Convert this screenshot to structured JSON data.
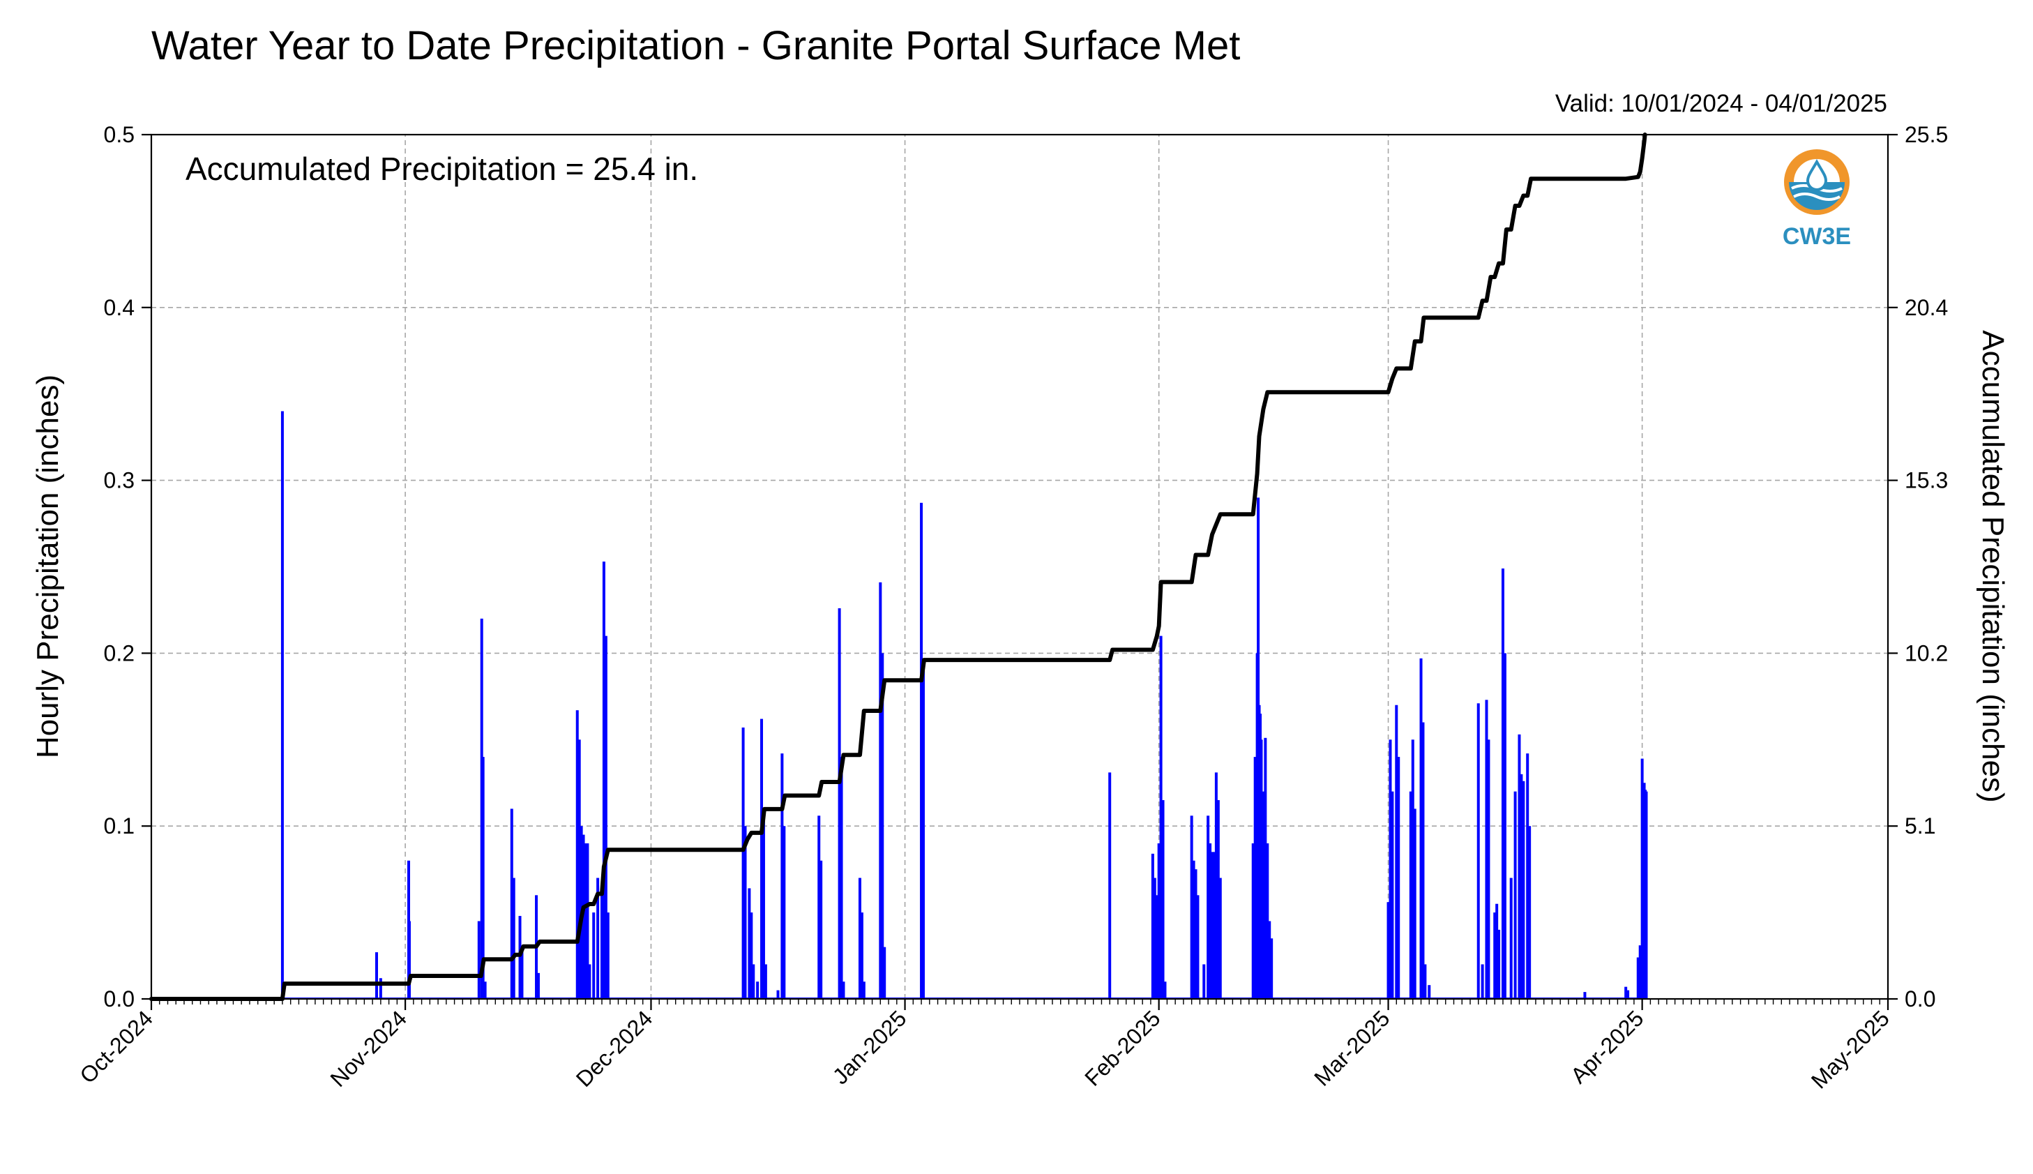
{
  "title": "Water Year to Date Precipitation - Granite Portal Surface Met",
  "valid_text": "Valid: 10/01/2024 - 04/01/2025",
  "annotation": "Accumulated Precipitation = 25.4 in.",
  "logo_text": "CW3E",
  "colors": {
    "hourly": "#0000ff",
    "accumulated": "#000000",
    "grid": "#a6a6a6",
    "logo_orange": "#f0962b",
    "logo_blue": "#2b8fbf"
  },
  "chart_data": {
    "type": "bar",
    "title": "Water Year to Date Precipitation - Granite Portal Surface Met",
    "xlim": [
      "2024-10-01",
      "2025-05-01"
    ],
    "x_tick_labels": [
      "Oct-2024",
      "Nov-2024",
      "Dec-2024",
      "Jan-2025",
      "Feb-2025",
      "Mar-2025",
      "Apr-2025",
      "May-2025"
    ],
    "x_tick_dates": [
      "2024-10-01",
      "2024-11-01",
      "2024-12-01",
      "2025-01-01",
      "2025-02-01",
      "2025-03-01",
      "2025-04-01",
      "2025-05-01"
    ],
    "left_axis": {
      "label": "Hourly Precipitation (inches)",
      "ylim": [
        0,
        0.5
      ],
      "ticks": [
        "0.0",
        "0.1",
        "0.2",
        "0.3",
        "0.4",
        "0.5"
      ]
    },
    "right_axis": {
      "label": "Accumulated Precipitation (inches)",
      "ylim": [
        0,
        25.5
      ],
      "ticks": [
        "0.0",
        "5.1",
        "10.2",
        "15.3",
        "20.4",
        "25.5"
      ]
    },
    "grid": true,
    "series": [
      {
        "type": "bar",
        "axis": "left",
        "values": [
          [
            "2024-10-17T00:00",
            0.34
          ],
          [
            "2024-10-28T12:00",
            0.027
          ],
          [
            "2024-10-29T00:00",
            0.012
          ],
          [
            "2024-11-01T10:00",
            0.08
          ],
          [
            "2024-11-01T12:00",
            0.045
          ],
          [
            "2024-11-10T00:00",
            0.045
          ],
          [
            "2024-11-10T08:00",
            0.22
          ],
          [
            "2024-11-10T12:00",
            0.14
          ],
          [
            "2024-11-10T18:00",
            0.01
          ],
          [
            "2024-11-14T00:00",
            0.11
          ],
          [
            "2024-11-14T06:00",
            0.07
          ],
          [
            "2024-11-15T00:00",
            0.048
          ],
          [
            "2024-11-15T06:00",
            0.03
          ],
          [
            "2024-11-17T00:00",
            0.06
          ],
          [
            "2024-11-17T06:00",
            0.015
          ],
          [
            "2024-11-22T00:00",
            0.167
          ],
          [
            "2024-11-22T06:00",
            0.15
          ],
          [
            "2024-11-22T12:00",
            0.1
          ],
          [
            "2024-11-22T18:00",
            0.095
          ],
          [
            "2024-11-23T00:00",
            0.09
          ],
          [
            "2024-11-23T06:00",
            0.09
          ],
          [
            "2024-11-23T12:00",
            0.02
          ],
          [
            "2024-11-24T00:00",
            0.05
          ],
          [
            "2024-11-24T12:00",
            0.07
          ],
          [
            "2024-11-25T00:00",
            0.06
          ],
          [
            "2024-11-25T06:00",
            0.253
          ],
          [
            "2024-11-25T12:00",
            0.21
          ],
          [
            "2024-11-25T18:00",
            0.05
          ],
          [
            "2024-12-12T06:00",
            0.157
          ],
          [
            "2024-12-12T12:00",
            0.1
          ],
          [
            "2024-12-13T00:00",
            0.064
          ],
          [
            "2024-12-13T06:00",
            0.05
          ],
          [
            "2024-12-13T12:00",
            0.02
          ],
          [
            "2024-12-14T00:00",
            0.01
          ],
          [
            "2024-12-14T12:00",
            0.162
          ],
          [
            "2024-12-14T18:00",
            0.11
          ],
          [
            "2024-12-15T00:00",
            0.02
          ],
          [
            "2024-12-16T12:00",
            0.005
          ],
          [
            "2024-12-17T00:00",
            0.142
          ],
          [
            "2024-12-17T06:00",
            0.1
          ],
          [
            "2024-12-21T12:00",
            0.106
          ],
          [
            "2024-12-21T18:00",
            0.08
          ],
          [
            "2024-12-24T00:00",
            0.226
          ],
          [
            "2024-12-24T06:00",
            0.14
          ],
          [
            "2024-12-24T12:00",
            0.01
          ],
          [
            "2024-12-26T12:00",
            0.07
          ],
          [
            "2024-12-26T18:00",
            0.05
          ],
          [
            "2024-12-27T00:00",
            0.01
          ],
          [
            "2024-12-29T00:00",
            0.241
          ],
          [
            "2024-12-29T06:00",
            0.2
          ],
          [
            "2024-12-29T12:00",
            0.03
          ],
          [
            "2025-01-03T00:00",
            0.287
          ],
          [
            "2025-01-03T06:00",
            0.19
          ],
          [
            "2025-01-26T00:00",
            0.131
          ],
          [
            "2025-01-31T06:00",
            0.084
          ],
          [
            "2025-01-31T12:00",
            0.07
          ],
          [
            "2025-01-31T18:00",
            0.06
          ],
          [
            "2025-02-01T00:00",
            0.09
          ],
          [
            "2025-02-01T06:00",
            0.21
          ],
          [
            "2025-02-01T12:00",
            0.115
          ],
          [
            "2025-02-01T18:00",
            0.01
          ],
          [
            "2025-02-05T00:00",
            0.106
          ],
          [
            "2025-02-05T06:00",
            0.08
          ],
          [
            "2025-02-05T12:00",
            0.075
          ],
          [
            "2025-02-05T18:00",
            0.06
          ],
          [
            "2025-02-06T12:00",
            0.02
          ],
          [
            "2025-02-07T00:00",
            0.106
          ],
          [
            "2025-02-07T06:00",
            0.09
          ],
          [
            "2025-02-07T12:00",
            0.085
          ],
          [
            "2025-02-07T18:00",
            0.085
          ],
          [
            "2025-02-08T00:00",
            0.131
          ],
          [
            "2025-02-08T06:00",
            0.115
          ],
          [
            "2025-02-08T12:00",
            0.07
          ],
          [
            "2025-02-12T12:00",
            0.09
          ],
          [
            "2025-02-12T18:00",
            0.14
          ],
          [
            "2025-02-13T00:00",
            0.2
          ],
          [
            "2025-02-13T03:00",
            0.29
          ],
          [
            "2025-02-13T06:00",
            0.17
          ],
          [
            "2025-02-13T09:00",
            0.165
          ],
          [
            "2025-02-13T12:00",
            0.15
          ],
          [
            "2025-02-13T18:00",
            0.12
          ],
          [
            "2025-02-14T00:00",
            0.151
          ],
          [
            "2025-02-14T06:00",
            0.09
          ],
          [
            "2025-02-14T12:00",
            0.045
          ],
          [
            "2025-02-14T18:00",
            0.035
          ],
          [
            "2025-03-01T00:00",
            0.056
          ],
          [
            "2025-03-01T06:00",
            0.15
          ],
          [
            "2025-03-01T12:00",
            0.12
          ],
          [
            "2025-03-02T00:00",
            0.17
          ],
          [
            "2025-03-02T06:00",
            0.14
          ],
          [
            "2025-03-03T18:00",
            0.12
          ],
          [
            "2025-03-04T00:00",
            0.15
          ],
          [
            "2025-03-04T06:00",
            0.11
          ],
          [
            "2025-03-05T00:00",
            0.197
          ],
          [
            "2025-03-05T06:00",
            0.16
          ],
          [
            "2025-03-05T12:00",
            0.02
          ],
          [
            "2025-03-06T00:00",
            0.008
          ],
          [
            "2025-03-12T00:00",
            0.171
          ],
          [
            "2025-03-12T12:00",
            0.02
          ],
          [
            "2025-03-13T00:00",
            0.173
          ],
          [
            "2025-03-13T06:00",
            0.15
          ],
          [
            "2025-03-14T00:00",
            0.05
          ],
          [
            "2025-03-14T06:00",
            0.055
          ],
          [
            "2025-03-14T12:00",
            0.04
          ],
          [
            "2025-03-15T00:00",
            0.249
          ],
          [
            "2025-03-15T06:00",
            0.2
          ],
          [
            "2025-03-16T00:00",
            0.07
          ],
          [
            "2025-03-16T12:00",
            0.12
          ],
          [
            "2025-03-17T00:00",
            0.153
          ],
          [
            "2025-03-17T06:00",
            0.13
          ],
          [
            "2025-03-17T12:00",
            0.126
          ],
          [
            "2025-03-18T00:00",
            0.142
          ],
          [
            "2025-03-18T06:00",
            0.1
          ],
          [
            "2025-03-25T00:00",
            0.004
          ],
          [
            "2025-03-30T00:00",
            0.007
          ],
          [
            "2025-03-30T06:00",
            0.005
          ],
          [
            "2025-03-31T12:00",
            0.024
          ],
          [
            "2025-03-31T18:00",
            0.031
          ],
          [
            "2025-04-01T00:00",
            0.139
          ],
          [
            "2025-04-01T03:00",
            0.09
          ],
          [
            "2025-04-01T06:00",
            0.125
          ],
          [
            "2025-04-01T09:00",
            0.121
          ],
          [
            "2025-04-01T12:00",
            0.12
          ]
        ]
      },
      {
        "type": "step-line",
        "axis": "right",
        "values": [
          [
            "2024-10-01T00:00",
            0.0
          ],
          [
            "2024-10-17T00:00",
            0.0
          ],
          [
            "2024-10-17T06:00",
            0.45
          ],
          [
            "2024-11-01T10:00",
            0.45
          ],
          [
            "2024-11-01T16:00",
            0.68
          ],
          [
            "2024-11-10T06:00",
            0.68
          ],
          [
            "2024-11-10T14:00",
            1.17
          ],
          [
            "2024-11-14T00:00",
            1.17
          ],
          [
            "2024-11-14T10:00",
            1.3
          ],
          [
            "2024-11-15T00:00",
            1.3
          ],
          [
            "2024-11-15T10:00",
            1.55
          ],
          [
            "2024-11-17T00:00",
            1.55
          ],
          [
            "2024-11-17T10:00",
            1.69
          ],
          [
            "2024-11-22T00:00",
            1.69
          ],
          [
            "2024-11-22T12:00",
            2.4
          ],
          [
            "2024-11-22T18:00",
            2.7
          ],
          [
            "2024-11-23T12:00",
            2.8
          ],
          [
            "2024-11-24T00:00",
            2.8
          ],
          [
            "2024-11-24T12:00",
            3.1
          ],
          [
            "2024-11-25T00:00",
            3.1
          ],
          [
            "2024-11-25T06:00",
            3.9
          ],
          [
            "2024-11-25T18:00",
            4.4
          ],
          [
            "2024-12-12T06:00",
            4.4
          ],
          [
            "2024-12-12T18:00",
            4.7
          ],
          [
            "2024-12-13T06:00",
            4.9
          ],
          [
            "2024-12-14T12:00",
            4.9
          ],
          [
            "2024-12-14T20:00",
            5.6
          ],
          [
            "2024-12-17T00:00",
            5.6
          ],
          [
            "2024-12-17T08:00",
            6.0
          ],
          [
            "2024-12-21T12:00",
            6.0
          ],
          [
            "2024-12-21T20:00",
            6.4
          ],
          [
            "2024-12-24T00:00",
            6.4
          ],
          [
            "2024-12-24T12:00",
            7.2
          ],
          [
            "2024-12-26T12:00",
            7.2
          ],
          [
            "2024-12-27T00:00",
            8.5
          ],
          [
            "2024-12-29T00:00",
            8.5
          ],
          [
            "2024-12-29T12:00",
            9.4
          ],
          [
            "2025-01-03T00:00",
            9.4
          ],
          [
            "2025-01-03T08:00",
            10.0
          ],
          [
            "2025-01-26T00:00",
            10.0
          ],
          [
            "2025-01-26T08:00",
            10.3
          ],
          [
            "2025-01-31T06:00",
            10.3
          ],
          [
            "2025-01-31T18:00",
            10.7
          ],
          [
            "2025-02-01T00:00",
            11.0
          ],
          [
            "2025-02-01T06:00",
            12.3
          ],
          [
            "2025-02-05T00:00",
            12.3
          ],
          [
            "2025-02-05T12:00",
            13.1
          ],
          [
            "2025-02-07T00:00",
            13.1
          ],
          [
            "2025-02-07T12:00",
            13.7
          ],
          [
            "2025-02-08T00:00",
            14.0
          ],
          [
            "2025-02-08T12:00",
            14.3
          ],
          [
            "2025-02-12T12:00",
            14.3
          ],
          [
            "2025-02-13T00:00",
            15.5
          ],
          [
            "2025-02-13T06:00",
            16.6
          ],
          [
            "2025-02-13T18:00",
            17.4
          ],
          [
            "2025-02-14T06:00",
            17.9
          ],
          [
            "2025-03-01T00:00",
            17.9
          ],
          [
            "2025-03-01T12:00",
            18.3
          ],
          [
            "2025-03-02T00:00",
            18.6
          ],
          [
            "2025-03-03T18:00",
            18.6
          ],
          [
            "2025-03-04T06:00",
            19.4
          ],
          [
            "2025-03-05T00:00",
            19.4
          ],
          [
            "2025-03-05T08:00",
            20.1
          ],
          [
            "2025-03-12T00:00",
            20.1
          ],
          [
            "2025-03-12T12:00",
            20.6
          ],
          [
            "2025-03-13T00:00",
            20.6
          ],
          [
            "2025-03-13T12:00",
            21.3
          ],
          [
            "2025-03-14T00:00",
            21.3
          ],
          [
            "2025-03-14T12:00",
            21.7
          ],
          [
            "2025-03-15T00:00",
            21.7
          ],
          [
            "2025-03-15T10:00",
            22.7
          ],
          [
            "2025-03-16T00:00",
            22.7
          ],
          [
            "2025-03-16T12:00",
            23.4
          ],
          [
            "2025-03-17T00:00",
            23.4
          ],
          [
            "2025-03-17T12:00",
            23.7
          ],
          [
            "2025-03-18T00:00",
            23.7
          ],
          [
            "2025-03-18T10:00",
            24.2
          ],
          [
            "2025-03-30T00:00",
            24.2
          ],
          [
            "2025-03-31T12:00",
            24.25
          ],
          [
            "2025-03-31T18:00",
            24.4
          ],
          [
            "2025-04-01T00:00",
            24.8
          ],
          [
            "2025-04-01T06:00",
            25.3
          ],
          [
            "2025-04-01T08:00",
            25.5
          ]
        ]
      }
    ]
  }
}
